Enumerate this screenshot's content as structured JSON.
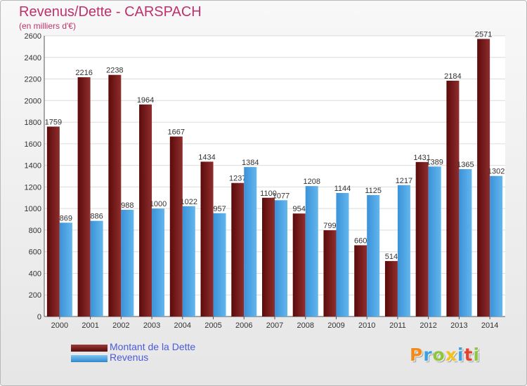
{
  "chart_data": {
    "type": "bar",
    "title": "Revenus/Dette - CARSPACH",
    "subtitle": "(en milliers d'€)",
    "categories": [
      "2000",
      "2001",
      "2002",
      "2003",
      "2004",
      "2005",
      "2006",
      "2007",
      "2008",
      "2009",
      "2010",
      "2011",
      "2012",
      "2013",
      "2014"
    ],
    "series": [
      {
        "name": "Montant de la Dette",
        "color": "#7a1a1a",
        "values": [
          1759,
          2216,
          2238,
          1964,
          1667,
          1434,
          1237,
          1100,
          954,
          799,
          660,
          514,
          1431,
          2184,
          2571
        ],
        "labels": [
          "1759",
          "2216",
          "2238",
          "1964",
          "1667",
          "1434",
          "1237",
          "1100",
          "954",
          "799",
          "660",
          "514",
          "1431",
          "2184",
          "2571"
        ]
      },
      {
        "name": "Revenus",
        "color": "#4ea6e6",
        "values": [
          869,
          886,
          988,
          1000,
          1022,
          957,
          1384,
          1077,
          1208,
          1144,
          1125,
          1217,
          1389,
          1365,
          1302
        ],
        "labels": [
          "869",
          "886",
          "988",
          "1000",
          "1022",
          "957",
          "1384",
          "1077",
          "1208",
          "1144",
          "1125",
          "1217",
          "1389",
          "1365",
          "1302"
        ]
      }
    ],
    "ylim": [
      0,
      2600
    ],
    "yticks": [
      0,
      200,
      400,
      600,
      800,
      1000,
      1200,
      1400,
      1600,
      1800,
      2000,
      2200,
      2400,
      2600
    ],
    "grid": true,
    "legend_position": "bottom-left"
  },
  "logo": {
    "letters": [
      "P",
      "r",
      "o",
      "x",
      "i",
      "t",
      "i"
    ],
    "colors": [
      "#f28a1e",
      "#3aa0e0",
      "#8cc63f",
      "#f2c21e",
      "#3aa0e0",
      "#e2432f",
      "#8cc63f"
    ]
  }
}
